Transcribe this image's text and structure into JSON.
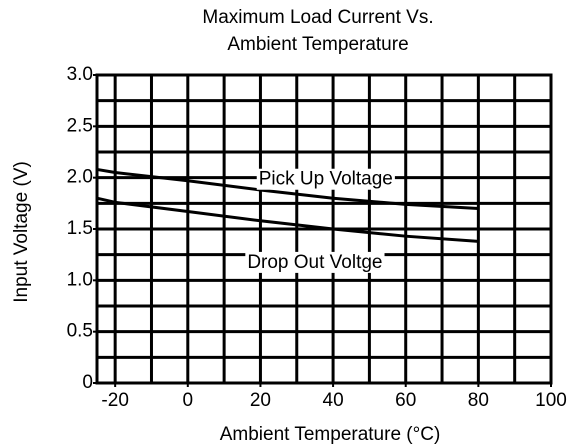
{
  "chart_data": {
    "type": "line",
    "title": [
      "Maximum Load Current Vs.",
      "Ambient Temperature"
    ],
    "x_label": "Ambient Temperature (°C)",
    "y_label": "Input Voltage (V)",
    "x": [
      -25,
      -20,
      0,
      20,
      40,
      60,
      80
    ],
    "series": [
      {
        "name": "Pick Up Voltage",
        "color": "#000000",
        "values": [
          2.08,
          2.05,
          1.97,
          1.88,
          1.8,
          1.74,
          1.7
        ]
      },
      {
        "name": "Drop Out Voltge",
        "color": "#000000",
        "values": [
          1.8,
          1.76,
          1.67,
          1.58,
          1.5,
          1.43,
          1.38
        ]
      }
    ],
    "xlim": [
      -25,
      100
    ],
    "xticks": [
      -20,
      0,
      20,
      40,
      60,
      80,
      100
    ],
    "x_minor_ticks": [
      -20,
      -10,
      0,
      10,
      20,
      30,
      40,
      50,
      60,
      70,
      80,
      90,
      100
    ],
    "ylim": [
      0,
      3
    ],
    "yticks": [
      0,
      0.5,
      {
        "value": 1,
        "label": "1.0"
      },
      1.5,
      {
        "value": 2,
        "label": "2.0"
      },
      2.5,
      {
        "value": 3,
        "label": "3.0"
      }
    ],
    "y_minor_ticks": [
      0.25,
      0.5,
      0.75,
      1,
      1.25,
      1.5,
      1.75,
      2,
      2.25,
      2.5,
      2.75
    ],
    "grid": true
  }
}
